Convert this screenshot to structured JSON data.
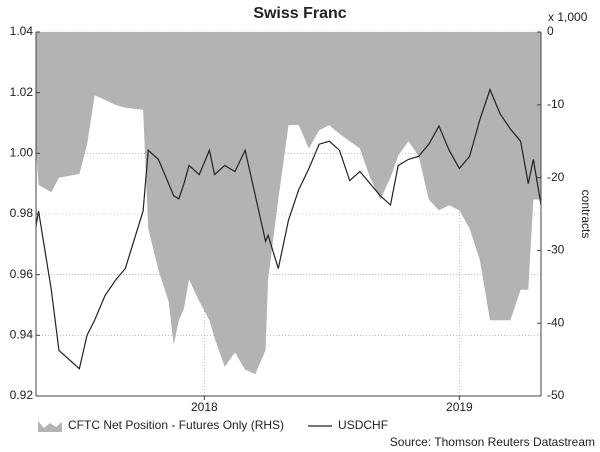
{
  "chart_data": {
    "type": "area-line",
    "title": "Swiss Franc",
    "y2_unit": "x 1,000",
    "y2_label": "contracts",
    "source": "Source: Thomson Reuters Datastream",
    "x": [
      2017.34,
      2017.35,
      2017.4,
      2017.43,
      2017.51,
      2017.54,
      2017.57,
      2017.61,
      2017.65,
      2017.69,
      2017.76,
      2017.78,
      2017.82,
      2017.86,
      2017.88,
      2017.9,
      2017.92,
      2017.94,
      2017.98,
      2018.02,
      2018.04,
      2018.08,
      2018.12,
      2018.16,
      2018.2,
      2018.24,
      2018.25,
      2018.29,
      2018.33,
      2018.37,
      2018.41,
      2018.45,
      2018.49,
      2018.53,
      2018.57,
      2018.61,
      2018.65,
      2018.69,
      2018.73,
      2018.76,
      2018.8,
      2018.84,
      2018.88,
      2018.92,
      2018.96,
      2019.0,
      2019.04,
      2019.08,
      2019.12,
      2019.16,
      2019.2,
      2019.24,
      2019.27,
      2019.29,
      2019.32
    ],
    "xlim": [
      2017.34,
      2019.32
    ],
    "xticks": [
      2018,
      2019
    ],
    "ylim": [
      0.92,
      1.04
    ],
    "yticks": [
      0.92,
      0.94,
      0.96,
      0.98,
      {
        "value": 1,
        "label": "1.00"
      },
      1.02,
      1.04
    ],
    "y2lim": [
      -50,
      0
    ],
    "y2ticks": [
      -50,
      -40,
      -30,
      -20,
      -10,
      0
    ],
    "grid": true,
    "series": [
      {
        "name": "CFTC Net Position - Futures Only (RHS)",
        "color": "#b3b3b3",
        "axis": "y2",
        "values": [
          -16,
          -21,
          -22,
          -20,
          -19.5,
          -15.5,
          -8.7,
          -9.3,
          -10,
          -10.4,
          -10.7,
          -27,
          -32.7,
          -37,
          -43,
          -39.6,
          -38,
          -34,
          -37,
          -39.6,
          -42,
          -46,
          -44,
          -46.4,
          -47,
          -43.7,
          -34,
          -23,
          -12.8,
          -12.8,
          -16,
          -13.5,
          -12.8,
          -14,
          -15,
          -16,
          -20,
          -23,
          -20,
          -17,
          -15,
          -17,
          -23,
          -24.5,
          -23.8,
          -24.5,
          -27,
          -31.3,
          -39.6,
          -39.6,
          -39.6,
          -35.4,
          -35.4,
          -23,
          -23
        ]
      },
      {
        "name": "USDCHF",
        "color": "#222222",
        "values": [
          0.976,
          0.981,
          0.955,
          0.935,
          0.929,
          0.94,
          0.945,
          0.953,
          0.958,
          0.962,
          0.981,
          1.001,
          0.998,
          0.99,
          0.986,
          0.985,
          0.99,
          0.996,
          0.993,
          1.001,
          0.993,
          0.996,
          0.994,
          1.001,
          0.986,
          0.971,
          0.973,
          0.962,
          0.978,
          0.988,
          0.995,
          1.003,
          1.004,
          1.001,
          0.991,
          0.994,
          0.99,
          0.986,
          0.983,
          0.996,
          0.998,
          0.999,
          1.003,
          1.009,
          1.001,
          0.995,
          0.999,
          1.011,
          1.021,
          1.013,
          1.008,
          1.004,
          0.99,
          0.998,
          0.983
        ]
      }
    ]
  }
}
